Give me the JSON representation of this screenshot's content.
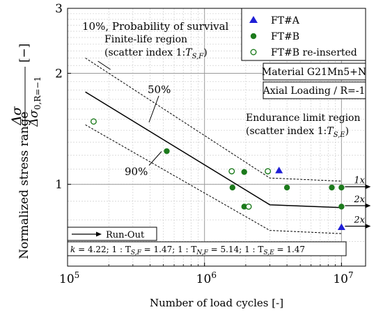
{
  "chart_data": {
    "type": "scatter",
    "x_scale": "log",
    "y_scale": "log",
    "xlim": [
      100000,
      15000000
    ],
    "ylim": [
      0.6,
      3
    ],
    "xlabel": "Number of load cycles [-]",
    "ylabel_prefix": "Normalized stress range",
    "ylabel_fraction": {
      "numerator": "Δσ",
      "denominator": "Δσ",
      "denominator_sub": "0,R=−1"
    },
    "ylabel_unit": "[−]",
    "x_ticks": [
      {
        "value": 100000,
        "base": "10",
        "exp": "5"
      },
      {
        "value": 1000000,
        "base": "10",
        "exp": "6"
      },
      {
        "value": 10000000,
        "base": "10",
        "exp": "7"
      }
    ],
    "y_ticks": [
      {
        "value": 1,
        "label": "1"
      },
      {
        "value": 2,
        "label": "2"
      },
      {
        "value": 3,
        "label": "3"
      }
    ],
    "grid": true,
    "legend": {
      "placement": "top-right",
      "entries": [
        {
          "label": "FT#A",
          "marker": "triangle",
          "color": "#1f1fd6"
        },
        {
          "label": "FT#B",
          "marker": "circle",
          "color": "#1c7a1c"
        },
        {
          "label": "FT#B re-inserted",
          "marker": "open-circle",
          "color": "#1c7a1c"
        }
      ]
    },
    "series": [
      {
        "name": "FT#A",
        "marker": "triangle",
        "color": "#1f1fd6",
        "x": [
          3500000,
          10000000
        ],
        "y": [
          1.09,
          0.765
        ]
      },
      {
        "name": "FT#B",
        "marker": "circle",
        "color": "#1c7a1c",
        "x": [
          530000,
          1600000,
          1950000,
          1950000,
          4000000,
          8500000,
          10000000,
          10000000
        ],
        "y": [
          1.23,
          0.98,
          1.08,
          0.87,
          0.98,
          0.98,
          0.98,
          0.87
        ]
      },
      {
        "name": "FT#B re-inserted",
        "marker": "open-circle",
        "color": "#1c7a1c",
        "x": [
          155000,
          1580000,
          2100000,
          2900000
        ],
        "y": [
          1.48,
          1.085,
          0.87,
          1.085
        ]
      }
    ],
    "curves": {
      "mean": {
        "style": "solid",
        "x": [
          135000,
          3000000,
          10000000
        ],
        "y": [
          1.78,
          0.88,
          0.865
        ]
      },
      "upper": {
        "style": "dashed",
        "x": [
          135000,
          3000000,
          10000000
        ],
        "y": [
          2.2,
          1.04,
          1.02
        ]
      },
      "lower": {
        "style": "dashed",
        "x": [
          135000,
          3000000,
          10000000
        ],
        "y": [
          1.45,
          0.75,
          0.735
        ]
      }
    },
    "runouts": [
      {
        "x": 10000000,
        "y": 0.985,
        "label": "1x"
      },
      {
        "x": 10000000,
        "y": 0.875,
        "label": "2x"
      },
      {
        "x": 10000000,
        "y": 0.77,
        "label": "2x"
      }
    ],
    "annotations": {
      "probability": "10%, Probability of survival",
      "finite_line1": "Finite-life region",
      "finite_line2_prefix": "(scatter index 1:",
      "finite_sym": "T",
      "finite_sub": "S,F",
      "endurance_line1": "Endurance limit region",
      "endurance_line2_prefix": "(scatter index 1:",
      "endurance_sym": "T",
      "endurance_sub": "S,E",
      "pct50": "50%",
      "pct90": "90%",
      "material": "Material G21Mn5+N",
      "loading": "Axial Loading / R=-1",
      "runout_label": "Run-Out",
      "params": [
        {
          "lhs": "k",
          "val": "4.22"
        },
        {
          "lhs": "1 : T",
          "sub": "S,F",
          "val": "1.47"
        },
        {
          "lhs": "1 : T",
          "sub": "N,F",
          "val": "5.14"
        },
        {
          "lhs": "1 : T",
          "sub": "S,E",
          "val": "1.47"
        }
      ]
    }
  }
}
